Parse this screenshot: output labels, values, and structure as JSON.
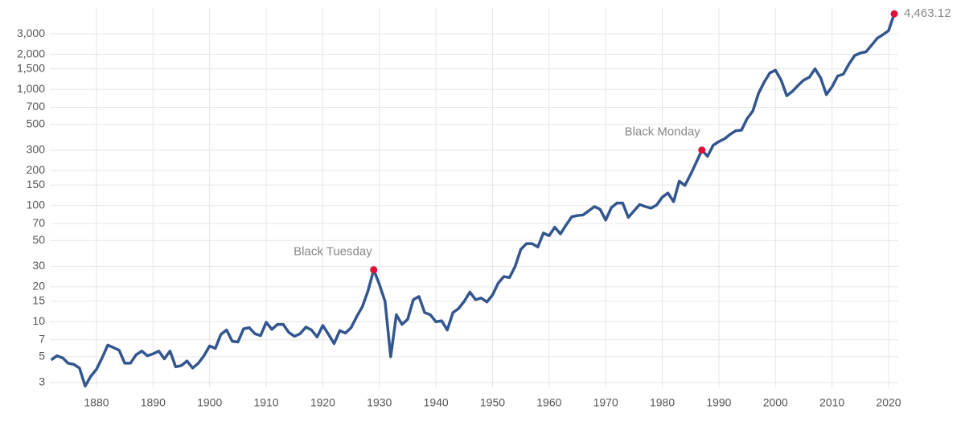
{
  "chart_data": {
    "type": "line",
    "log_scale": true,
    "grid": true,
    "x": [
      1872,
      1873,
      1874,
      1875,
      1876,
      1877,
      1878,
      1879,
      1880,
      1881,
      1882,
      1883,
      1884,
      1885,
      1886,
      1887,
      1888,
      1889,
      1890,
      1891,
      1892,
      1893,
      1894,
      1895,
      1896,
      1897,
      1898,
      1899,
      1900,
      1901,
      1902,
      1903,
      1904,
      1905,
      1906,
      1907,
      1908,
      1909,
      1910,
      1911,
      1912,
      1913,
      1914,
      1915,
      1916,
      1917,
      1918,
      1919,
      1920,
      1921,
      1922,
      1923,
      1924,
      1925,
      1926,
      1927,
      1928,
      1929,
      1930,
      1931,
      1932,
      1933,
      1934,
      1935,
      1936,
      1937,
      1938,
      1939,
      1940,
      1941,
      1942,
      1943,
      1944,
      1945,
      1946,
      1947,
      1948,
      1949,
      1950,
      1951,
      1952,
      1953,
      1954,
      1955,
      1956,
      1957,
      1958,
      1959,
      1960,
      1961,
      1962,
      1963,
      1964,
      1965,
      1966,
      1967,
      1968,
      1969,
      1970,
      1971,
      1972,
      1973,
      1974,
      1975,
      1976,
      1977,
      1978,
      1979,
      1980,
      1981,
      1982,
      1983,
      1984,
      1985,
      1986,
      1987,
      1988,
      1989,
      1990,
      1991,
      1992,
      1993,
      1994,
      1995,
      1996,
      1997,
      1998,
      1999,
      2000,
      2001,
      2002,
      2003,
      2004,
      2005,
      2006,
      2007,
      2008,
      2009,
      2010,
      2011,
      2012,
      2013,
      2014,
      2015,
      2016,
      2017,
      2018,
      2019,
      2020,
      2021
    ],
    "series": [
      {
        "color": "#33568f",
        "values": [
          4.7,
          5.1,
          4.9,
          4.4,
          4.3,
          4.0,
          2.8,
          3.4,
          3.9,
          4.9,
          6.3,
          6.0,
          5.7,
          4.4,
          4.4,
          5.2,
          5.6,
          5.1,
          5.3,
          5.6,
          4.8,
          5.6,
          4.1,
          4.2,
          4.6,
          4.0,
          4.4,
          5.1,
          6.2,
          5.9,
          7.8,
          8.5,
          6.8,
          6.7,
          8.7,
          8.9,
          7.9,
          7.6,
          9.9,
          8.6,
          9.5,
          9.5,
          8.1,
          7.5,
          7.9,
          9.0,
          8.5,
          7.4,
          9.3,
          7.8,
          6.5,
          8.4,
          8.0,
          8.9,
          11.1,
          13.5,
          18.5,
          28,
          21,
          15,
          5.0,
          11.5,
          9.5,
          10.5,
          15.5,
          16.5,
          12,
          11.5,
          10,
          10.2,
          8.5,
          12,
          13,
          15,
          18,
          15.5,
          16,
          14.8,
          17,
          21.5,
          24.5,
          24,
          30,
          42,
          47,
          47,
          44,
          58,
          55,
          65,
          57,
          68,
          80,
          82,
          83,
          90,
          98,
          93,
          75,
          96,
          105,
          105,
          79,
          90,
          102,
          98,
          95,
          101,
          118,
          128,
          108,
          162,
          149,
          185,
          235,
          300,
          265,
          330,
          355,
          375,
          410,
          440,
          445,
          560,
          650,
          920,
          1150,
          1380,
          1460,
          1200,
          880,
          960,
          1080,
          1200,
          1270,
          1500,
          1250,
          900,
          1050,
          1300,
          1350,
          1650,
          1950,
          2050,
          2100,
          2400,
          2750,
          2950,
          3200,
          4463.12
        ]
      }
    ],
    "marker_color": "#e0103a",
    "annotations": [
      {
        "label": "Black Tuesday",
        "x": 1929
      },
      {
        "label": "Black Monday",
        "x": 1987
      },
      {
        "label": "4,463.12",
        "x": 2021
      }
    ],
    "xlim": [
      1870,
      2024
    ],
    "xticks": [
      1880,
      1890,
      1900,
      1910,
      1920,
      1930,
      1940,
      1950,
      1960,
      1970,
      1980,
      1990,
      2000,
      2010,
      2020
    ],
    "ylim": [
      2.4,
      5000
    ],
    "yticks": [
      3,
      5,
      7,
      10,
      15,
      20,
      30,
      50,
      70,
      100,
      150,
      200,
      300,
      500,
      700,
      {
        "value": 1000,
        "label": "1,000"
      },
      {
        "value": 1500,
        "label": "1,500"
      },
      {
        "value": 2000,
        "label": "2,000"
      },
      {
        "value": 3000,
        "label": "3,000"
      }
    ]
  }
}
